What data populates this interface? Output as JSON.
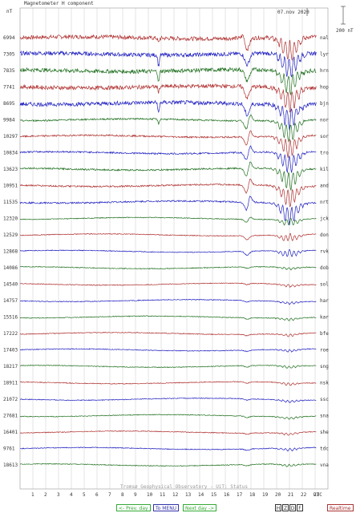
{
  "chart_data": {
    "type": "line",
    "title": "Magnetometer H component",
    "ylabel": "nT",
    "date_label": "07.nov 2020",
    "scale_label": "200 nT",
    "xlabel": "UTC",
    "x_ticks": [
      "1",
      "2",
      "3",
      "4",
      "5",
      "6",
      "7",
      "8",
      "9",
      "10",
      "11",
      "12",
      "13",
      "14",
      "15",
      "16",
      "17",
      "18",
      "19",
      "20",
      "21",
      "22",
      "23"
    ],
    "xlim": [
      0,
      24
    ],
    "grid": true,
    "series": [
      {
        "name": "nal",
        "baseline": "6994",
        "color": "#b03030"
      },
      {
        "name": "lyr",
        "baseline": "7305",
        "color": "#2020c0"
      },
      {
        "name": "hrn",
        "baseline": "7835",
        "color": "#207020"
      },
      {
        "name": "hop",
        "baseline": "7741",
        "color": "#b03030"
      },
      {
        "name": "bjn",
        "baseline": "8695",
        "color": "#2020c0"
      },
      {
        "name": "nor",
        "baseline": "9984",
        "color": "#207020"
      },
      {
        "name": "sor",
        "baseline": "10297",
        "color": "#b03030"
      },
      {
        "name": "tro",
        "baseline": "10834",
        "color": "#2020c0"
      },
      {
        "name": "kil",
        "baseline": "13623",
        "color": "#207020"
      },
      {
        "name": "and",
        "baseline": "10951",
        "color": "#b03030"
      },
      {
        "name": "nrt",
        "baseline": "11535",
        "color": "#2020c0"
      },
      {
        "name": "jck",
        "baseline": "12320",
        "color": "#207020"
      },
      {
        "name": "don",
        "baseline": "12529",
        "color": "#b03030"
      },
      {
        "name": "rvk",
        "baseline": "12868",
        "color": "#2020c0"
      },
      {
        "name": "dob",
        "baseline": "14086",
        "color": "#207020"
      },
      {
        "name": "sol",
        "baseline": "14540",
        "color": "#b03030"
      },
      {
        "name": "har",
        "baseline": "14757",
        "color": "#2020c0"
      },
      {
        "name": "kar",
        "baseline": "15516",
        "color": "#207020"
      },
      {
        "name": "bfe",
        "baseline": "17222",
        "color": "#b03030"
      },
      {
        "name": "roe",
        "baseline": "17403",
        "color": "#2020c0"
      },
      {
        "name": "sng",
        "baseline": "18217",
        "color": "#207020"
      },
      {
        "name": "nsk",
        "baseline": "18911",
        "color": "#b03030"
      },
      {
        "name": "ssc",
        "baseline": "21072",
        "color": "#2020c0"
      },
      {
        "name": "sna",
        "baseline": "27681",
        "color": "#207020"
      },
      {
        "name": "she",
        "baseline": "16401",
        "color": "#b03030"
      },
      {
        "name": "tdc",
        "baseline": "9761",
        "color": "#2020c0"
      },
      {
        "name": "vna",
        "baseline": "18613",
        "color": "#207020"
      }
    ]
  },
  "footer": {
    "credit": "Tromsø Geophysical Observatory - UiT: Status",
    "prev_day": "<- Prev. day",
    "to_menu": "To MENU",
    "next_day": "Next day ->",
    "comp_h": "H",
    "comp_z": "Z",
    "comp_d": "D",
    "comp_f": "F",
    "realtime": "Realtime"
  }
}
